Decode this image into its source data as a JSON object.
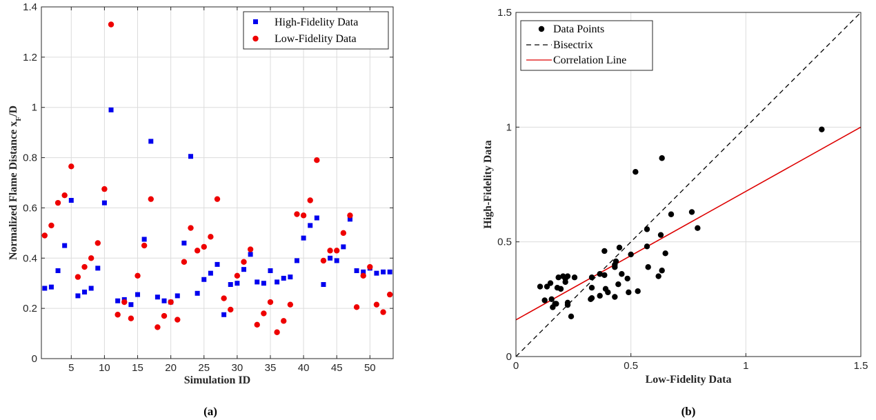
{
  "colors": {
    "high_fidelity": "#0000ee",
    "low_fidelity": "#ee0000",
    "data_points": "#000000",
    "correlation": "#dd0000",
    "grid": "#dcdcdc"
  },
  "chart_data": [
    {
      "type": "scatter",
      "caption": "(a)",
      "xlabel": "Simulation ID",
      "ylabel": "Normalized Flame Distance x",
      "ylabel_sub": "F",
      "ylabel_tail": "/D",
      "xlim": [
        0.5,
        53.5
      ],
      "ylim": [
        0,
        1.4
      ],
      "xticks": [
        5,
        10,
        15,
        20,
        25,
        30,
        35,
        40,
        45,
        50
      ],
      "yticks": [
        0,
        0.2,
        0.4,
        0.6,
        0.8,
        1,
        1.2,
        1.4
      ],
      "grid": true,
      "legend_position": "top-right",
      "x": [
        1,
        2,
        3,
        4,
        5,
        6,
        7,
        8,
        9,
        10,
        11,
        12,
        13,
        14,
        15,
        16,
        17,
        18,
        19,
        20,
        21,
        22,
        23,
        24,
        25,
        26,
        27,
        28,
        29,
        30,
        31,
        32,
        33,
        34,
        35,
        36,
        37,
        38,
        39,
        40,
        41,
        42,
        43,
        44,
        45,
        46,
        47,
        48,
        49,
        50,
        51,
        52,
        53
      ],
      "series": [
        {
          "name": "High-Fidelity Data",
          "marker": "square",
          "values": [
            0.28,
            0.285,
            0.35,
            0.45,
            0.63,
            0.25,
            0.265,
            0.28,
            0.36,
            0.62,
            0.99,
            0.23,
            0.235,
            0.215,
            0.255,
            0.475,
            0.865,
            0.245,
            0.23,
            0.225,
            0.25,
            0.46,
            0.805,
            0.26,
            0.315,
            0.34,
            0.375,
            0.175,
            0.295,
            0.3,
            0.355,
            0.415,
            0.305,
            0.3,
            0.35,
            0.305,
            0.32,
            0.325,
            0.39,
            0.48,
            0.53,
            0.56,
            0.295,
            0.4,
            0.39,
            0.445,
            0.555,
            0.35,
            0.345,
            0.36,
            0.34,
            0.345,
            0.345
          ]
        },
        {
          "name": "Low-Fidelity Data",
          "marker": "circle",
          "values": [
            0.49,
            0.53,
            0.62,
            0.65,
            0.765,
            0.325,
            0.365,
            0.4,
            0.46,
            0.675,
            1.33,
            0.175,
            0.225,
            0.16,
            0.33,
            0.45,
            0.635,
            0.125,
            0.17,
            0.225,
            0.155,
            0.385,
            0.52,
            0.43,
            0.445,
            0.485,
            0.635,
            0.24,
            0.195,
            0.33,
            0.385,
            0.435,
            0.135,
            0.18,
            0.225,
            0.105,
            0.15,
            0.215,
            0.575,
            0.57,
            0.63,
            0.79,
            0.39,
            0.43,
            0.43,
            0.5,
            0.57,
            0.205,
            0.33,
            0.365,
            0.215,
            0.185,
            0.255
          ]
        }
      ]
    },
    {
      "type": "scatter",
      "caption": "(b)",
      "xlabel": "Low-Fidelity Data",
      "ylabel": "High-Fidelity Data",
      "xlim": [
        0,
        1.5
      ],
      "ylim": [
        0,
        1.5
      ],
      "xticks": [
        0,
        0.5,
        1,
        1.5
      ],
      "yticks": [
        0,
        0.5,
        1,
        1.5
      ],
      "grid": true,
      "legend_position": "top-left",
      "series": [
        {
          "name": "Data Points",
          "marker": "circle"
        },
        {
          "name": "Bisectrix",
          "style": "dashed",
          "line": [
            [
              0,
              0
            ],
            [
              1.5,
              1.5
            ]
          ]
        },
        {
          "name": "Correlation Line",
          "style": "solid",
          "line": [
            [
              0,
              0.16
            ],
            [
              1.5,
              1.0
            ]
          ]
        }
      ]
    }
  ]
}
